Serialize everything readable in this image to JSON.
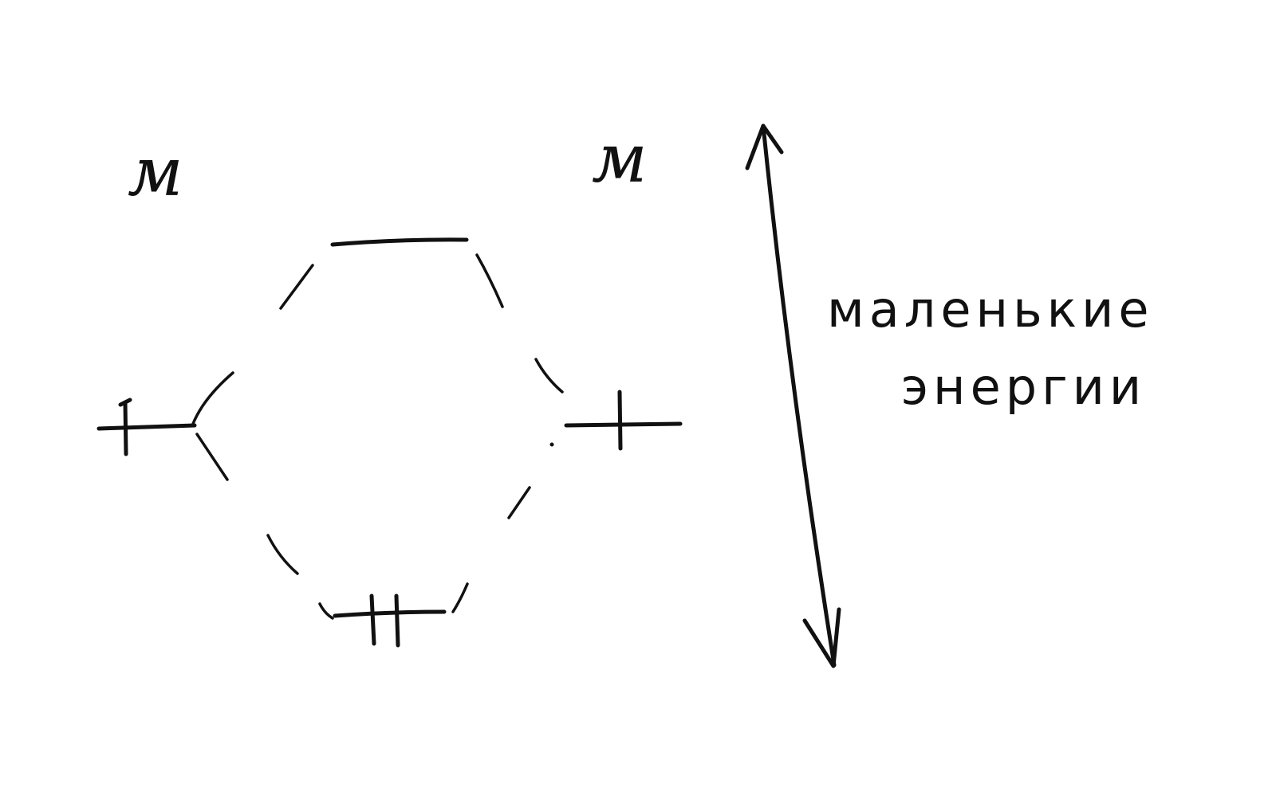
{
  "diagram": {
    "left_atom_label": "м",
    "right_atom_label": "м",
    "energy_annotation": {
      "line1": "маленькие",
      "line2": "энергии"
    },
    "left_level_electrons": 1,
    "right_level_electrons": 1,
    "bonding_level_electrons": 2,
    "antibonding_level_electrons": 0,
    "arrow": "double-headed-vertical"
  }
}
